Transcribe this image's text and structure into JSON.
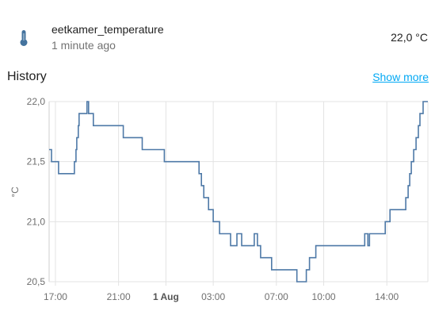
{
  "entity": {
    "icon": "thermometer-icon",
    "name": "eetkamer_temperature",
    "last_changed": "1 minute ago",
    "state": "22,0 °C"
  },
  "history": {
    "title": "History",
    "show_more": "Show more"
  },
  "colors": {
    "line": "#4e79a7",
    "grid": "#e3e3e3",
    "icon": "#44739e",
    "link": "#03a9f4"
  },
  "chart_data": {
    "type": "line",
    "ylabel": "°C",
    "ylim": [
      20.5,
      22.0
    ],
    "yticks": [
      "20,5",
      "21,0",
      "21,5",
      "22,0"
    ],
    "ytick_values": [
      20.5,
      21.0,
      21.5,
      22.0
    ],
    "xlim_hours": [
      16.6,
      40.6
    ],
    "xticks": [
      {
        "label": "17:00",
        "hour": 17,
        "major": false
      },
      {
        "label": "21:00",
        "hour": 21,
        "major": false
      },
      {
        "label": "1 Aug",
        "hour": 24,
        "major": true
      },
      {
        "label": "03:00",
        "hour": 27,
        "major": false
      },
      {
        "label": "07:00",
        "hour": 31,
        "major": false
      },
      {
        "label": "10:00",
        "hour": 34,
        "major": false
      },
      {
        "label": "14:00",
        "hour": 38,
        "major": false
      }
    ],
    "series": [
      {
        "step": true,
        "points": [
          [
            16.6,
            21.6
          ],
          [
            16.75,
            21.5
          ],
          [
            17.2,
            21.4
          ],
          [
            18.2,
            21.5
          ],
          [
            18.3,
            21.6
          ],
          [
            18.35,
            21.7
          ],
          [
            18.45,
            21.8
          ],
          [
            18.5,
            21.9
          ],
          [
            19.0,
            22.0
          ],
          [
            19.1,
            21.9
          ],
          [
            19.4,
            21.8
          ],
          [
            21.3,
            21.7
          ],
          [
            22.5,
            21.6
          ],
          [
            23.9,
            21.5
          ],
          [
            26.1,
            21.4
          ],
          [
            26.25,
            21.3
          ],
          [
            26.4,
            21.2
          ],
          [
            26.7,
            21.1
          ],
          [
            27.0,
            21.0
          ],
          [
            27.4,
            20.9
          ],
          [
            28.1,
            20.8
          ],
          [
            28.5,
            20.9
          ],
          [
            28.8,
            20.8
          ],
          [
            29.6,
            20.9
          ],
          [
            29.8,
            20.8
          ],
          [
            30.0,
            20.7
          ],
          [
            30.7,
            20.6
          ],
          [
            32.3,
            20.5
          ],
          [
            32.9,
            20.6
          ],
          [
            33.1,
            20.7
          ],
          [
            33.5,
            20.8
          ],
          [
            36.6,
            20.9
          ],
          [
            36.8,
            20.8
          ],
          [
            36.9,
            20.9
          ],
          [
            37.9,
            21.0
          ],
          [
            38.2,
            21.1
          ],
          [
            39.2,
            21.2
          ],
          [
            39.35,
            21.3
          ],
          [
            39.45,
            21.4
          ],
          [
            39.55,
            21.5
          ],
          [
            39.7,
            21.6
          ],
          [
            39.85,
            21.7
          ],
          [
            40.0,
            21.8
          ],
          [
            40.1,
            21.9
          ],
          [
            40.3,
            22.0
          ],
          [
            40.6,
            22.0
          ]
        ]
      }
    ]
  }
}
